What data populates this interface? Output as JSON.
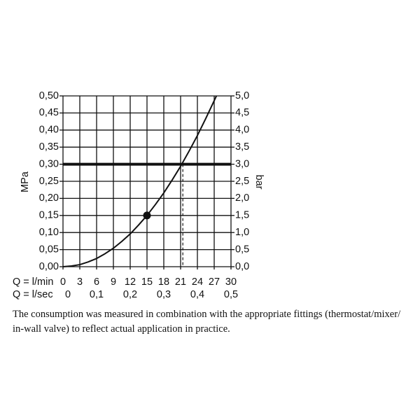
{
  "chart_data": {
    "type": "line",
    "xlabel": "Q = l/min",
    "x2label": "Q = l/sec",
    "ylabel": "MPa",
    "y2label": "bar",
    "xlim": [
      0,
      30
    ],
    "xticks": [
      0,
      3,
      6,
      9,
      12,
      15,
      18,
      21,
      24,
      27,
      30
    ],
    "x2lim": [
      0,
      0.5
    ],
    "x2ticks": [
      0,
      {
        "value": 0.1,
        "label": "0,1"
      },
      {
        "value": 0.2,
        "label": "0,2"
      },
      {
        "value": 0.3,
        "label": "0,3"
      },
      {
        "value": 0.4,
        "label": "0,4"
      },
      {
        "value": 0.5,
        "label": "0,5"
      }
    ],
    "ylim": [
      0,
      0.5
    ],
    "yticks": [
      {
        "value": 0,
        "label": "0,00"
      },
      {
        "value": 0.05,
        "label": "0,05"
      },
      {
        "value": 0.1,
        "label": "0,10"
      },
      {
        "value": 0.15,
        "label": "0,15"
      },
      {
        "value": 0.2,
        "label": "0,20"
      },
      {
        "value": 0.25,
        "label": "0,25"
      },
      {
        "value": 0.3,
        "label": "0,30"
      },
      {
        "value": 0.35,
        "label": "0,35"
      },
      {
        "value": 0.4,
        "label": "0,40"
      },
      {
        "value": 0.45,
        "label": "0,45"
      },
      {
        "value": 0.5,
        "label": "0,50"
      }
    ],
    "y2lim": [
      0,
      5
    ],
    "y2ticks": [
      {
        "value": 0,
        "label": "0,0"
      },
      {
        "value": 0.5,
        "label": "0,5"
      },
      {
        "value": 1,
        "label": "1,0"
      },
      {
        "value": 1.5,
        "label": "1,5"
      },
      {
        "value": 2,
        "label": "2,0"
      },
      {
        "value": 2.5,
        "label": "2,5"
      },
      {
        "value": 3,
        "label": "3,0"
      },
      {
        "value": 3.5,
        "label": "3,5"
      },
      {
        "value": 4,
        "label": "4,0"
      },
      {
        "value": 4.5,
        "label": "4,5"
      },
      {
        "value": 5,
        "label": "5,0"
      }
    ],
    "grid": true,
    "series": [
      {
        "color": "#111111",
        "x": [
          0,
          1.5,
          3,
          4.5,
          6,
          7.5,
          9,
          10.5,
          12,
          13.5,
          15,
          16.5,
          18,
          19.5,
          21,
          22.5,
          24,
          25.5,
          27,
          27.4
        ],
        "values": [
          0,
          0.002,
          0.006,
          0.014,
          0.024,
          0.038,
          0.054,
          0.074,
          0.096,
          0.122,
          0.15,
          0.182,
          0.216,
          0.254,
          0.294,
          0.338,
          0.384,
          0.434,
          0.486,
          0.5
        ]
      }
    ],
    "point": {
      "x": 15,
      "y": 0.15
    },
    "reference_y": 0.3,
    "reference_x": 21.4
  },
  "caption": [
    "The consumption was measured in combination with the appropriate fittings (thermostat/mixer/",
    "in-wall valve) to reflect actual application in practice."
  ]
}
